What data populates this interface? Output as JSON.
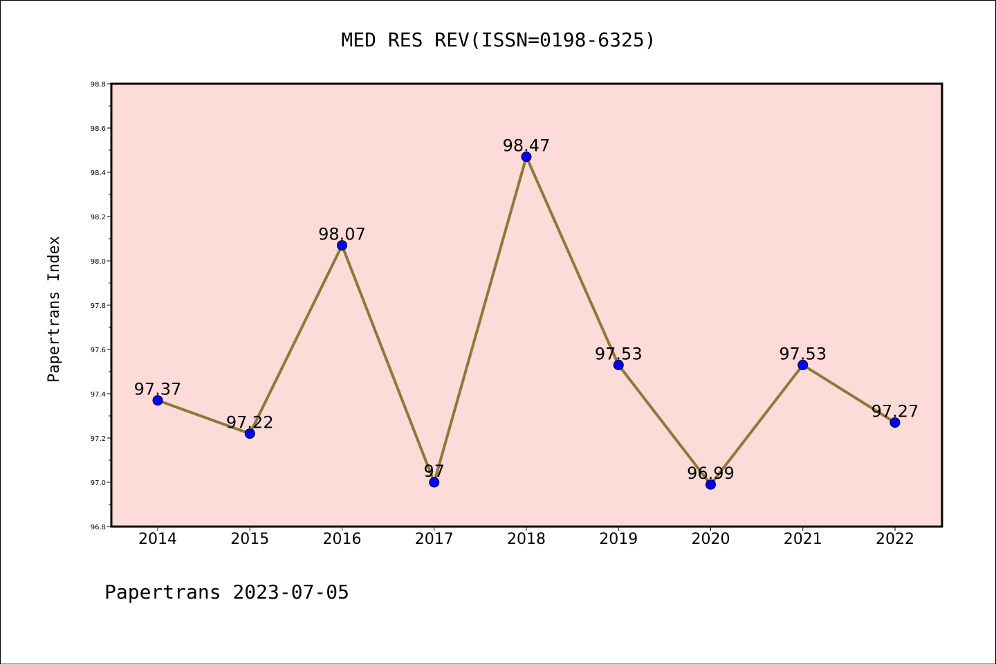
{
  "chart_data": {
    "type": "line",
    "title": "MED RES REV(ISSN=0198-6325)",
    "ylabel": "Papertrans Index",
    "xlabel": "",
    "footer": "Papertrans 2023-07-05",
    "categories": [
      "2014",
      "2015",
      "2016",
      "2017",
      "2018",
      "2019",
      "2020",
      "2021",
      "2022"
    ],
    "values": [
      97.37,
      97.22,
      98.07,
      97.0,
      98.47,
      97.53,
      96.99,
      97.53,
      97.27
    ],
    "value_labels": [
      "97.37",
      "97.22",
      "98.07",
      "97",
      "98.47",
      "97.53",
      "96.99",
      "97.53",
      "97.27"
    ],
    "ylim": [
      96.8,
      98.8
    ],
    "yticks": [
      "96.8",
      "97.0",
      "97.2",
      "97.4",
      "97.6",
      "97.8",
      "98.0",
      "98.2",
      "98.4",
      "98.6",
      "98.8"
    ],
    "grid": false,
    "legend": "none",
    "colors": {
      "plot_background": "#fddbd8",
      "line": "#8b7a3a",
      "marker": "#0000ff",
      "frame": "#000000"
    }
  }
}
